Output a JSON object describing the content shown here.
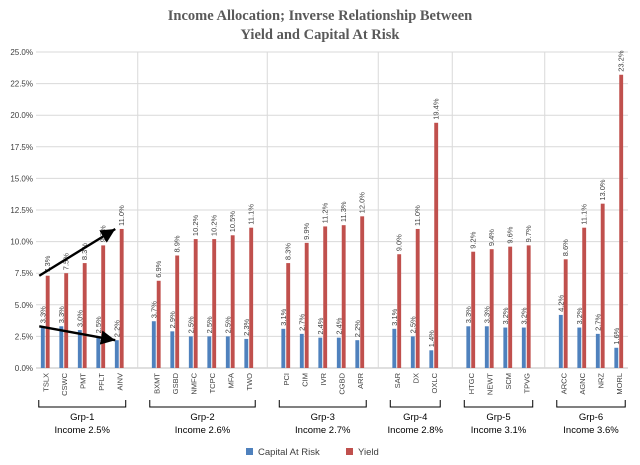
{
  "title_lines": [
    "Income Allocation; Inverse Relationship Between",
    "Yield and Capital At Risk"
  ],
  "colors": {
    "capital": "#4F81BD",
    "yield": "#C0504D",
    "grid": "#D9D9D9",
    "arrow": "#000000"
  },
  "chart_data": {
    "type": "bar",
    "title": "Income Allocation; Inverse Relationship Between Yield and Capital At Risk",
    "ylim": [
      0,
      25
    ],
    "yticks": [
      "0.0%",
      "2.5%",
      "5.0%",
      "7.5%",
      "10.0%",
      "12.5%",
      "15.0%",
      "17.5%",
      "20.0%",
      "22.5%",
      "25.0%"
    ],
    "grid": true,
    "legend_position": "bottom",
    "series": [
      {
        "name": "Capital At Risk",
        "color": "#4F81BD"
      },
      {
        "name": "Yield",
        "color": "#C0504D"
      }
    ],
    "groups": [
      {
        "name": "Grp-1",
        "income": "Income 2.5%",
        "items": [
          {
            "ticker": "TSLX",
            "capital": 3.3,
            "capital_label": "3.3%",
            "yield": 7.3,
            "yield_label": "7.3%"
          },
          {
            "ticker": "CSWC",
            "capital": 3.3,
            "capital_label": "3.3%",
            "yield": 7.5,
            "yield_label": "7.5%"
          },
          {
            "ticker": "PMT",
            "capital": 3.0,
            "capital_label": "3.0%",
            "yield": 8.3,
            "yield_label": "8.3%"
          },
          {
            "ticker": "PFLT",
            "capital": 2.5,
            "capital_label": "2.5%",
            "yield": 9.7,
            "yield_label": "9.7%"
          },
          {
            "ticker": "AINV",
            "capital": 2.2,
            "capital_label": "2.2%",
            "yield": 11.0,
            "yield_label": "11.0%"
          }
        ]
      },
      {
        "name": "Grp-2",
        "income": "Income 2.6%",
        "items": [
          {
            "ticker": "BXMT",
            "capital": 3.7,
            "capital_label": "3.7%",
            "yield": 6.9,
            "yield_label": "6.9%"
          },
          {
            "ticker": "GSBD",
            "capital": 2.9,
            "capital_label": "2.9%",
            "yield": 8.9,
            "yield_label": "8.9%"
          },
          {
            "ticker": "NMFC",
            "capital": 2.5,
            "capital_label": "2.5%",
            "yield": 10.2,
            "yield_label": "10.2%"
          },
          {
            "ticker": "TCPC",
            "capital": 2.5,
            "capital_label": "2.5%",
            "yield": 10.2,
            "yield_label": "10.2%"
          },
          {
            "ticker": "MFA",
            "capital": 2.5,
            "capital_label": "2.5%",
            "yield": 10.5,
            "yield_label": "10.5%"
          },
          {
            "ticker": "TWO",
            "capital": 2.3,
            "capital_label": "2.3%",
            "yield": 11.1,
            "yield_label": "11.1%"
          }
        ]
      },
      {
        "name": "Grp-3",
        "income": "Income 2.7%",
        "items": [
          {
            "ticker": "PCI",
            "capital": 3.1,
            "capital_label": "3.1%",
            "yield": 8.3,
            "yield_label": "8.3%"
          },
          {
            "ticker": "CIM",
            "capital": 2.7,
            "capital_label": "2.7%",
            "yield": 9.9,
            "yield_label": "9.9%"
          },
          {
            "ticker": "IVR",
            "capital": 2.4,
            "capital_label": "2.4%",
            "yield": 11.2,
            "yield_label": "11.2%"
          },
          {
            "ticker": "CGBD",
            "capital": 2.4,
            "capital_label": "2.4%",
            "yield": 11.3,
            "yield_label": "11.3%"
          },
          {
            "ticker": "ARR",
            "capital": 2.2,
            "capital_label": "2.2%",
            "yield": 12.0,
            "yield_label": "12.0%"
          }
        ]
      },
      {
        "name": "Grp-4",
        "income": "Income 2.8%",
        "items": [
          {
            "ticker": "SAR",
            "capital": 3.1,
            "capital_label": "3.1%",
            "yield": 9.0,
            "yield_label": "9.0%"
          },
          {
            "ticker": "DX",
            "capital": 2.5,
            "capital_label": "2.5%",
            "yield": 11.0,
            "yield_label": "11.0%"
          },
          {
            "ticker": "OXLC",
            "capital": 1.4,
            "capital_label": "1.4%",
            "yield": 19.4,
            "yield_label": "19.4%"
          }
        ]
      },
      {
        "name": "Grp-5",
        "income": "Income 3.1%",
        "items": [
          {
            "ticker": "HTGC",
            "capital": 3.3,
            "capital_label": "3.3%",
            "yield": 9.2,
            "yield_label": "9.2%"
          },
          {
            "ticker": "NEWT",
            "capital": 3.3,
            "capital_label": "3.3%",
            "yield": 9.4,
            "yield_label": "9.4%"
          },
          {
            "ticker": "SCM",
            "capital": 3.2,
            "capital_label": "3.2%",
            "yield": 9.6,
            "yield_label": "9.6%"
          },
          {
            "ticker": "TPVG",
            "capital": 3.2,
            "capital_label": "3.2%",
            "yield": 9.7,
            "yield_label": "9.7%"
          }
        ]
      },
      {
        "name": "Grp-6",
        "income": "Income 3.6%",
        "items": [
          {
            "ticker": "ARCC",
            "capital": 4.2,
            "capital_label": "4.2%",
            "yield": 8.6,
            "yield_label": "8.6%"
          },
          {
            "ticker": "AGNC",
            "capital": 3.2,
            "capital_label": "3.2%",
            "yield": 11.1,
            "yield_label": "11.1%"
          },
          {
            "ticker": "NRZ",
            "capital": 2.7,
            "capital_label": "2.7%",
            "yield": 13.0,
            "yield_label": "13.0%"
          },
          {
            "ticker": "MORL",
            "capital": 1.6,
            "capital_label": "1.6%",
            "yield": 23.2,
            "yield_label": "23.2%"
          }
        ]
      }
    ],
    "annotations": [
      {
        "type": "arrow",
        "from": {
          "ticker": "TSLX",
          "value": 3.3
        },
        "to": {
          "ticker": "AINV",
          "value": 2.2
        }
      },
      {
        "type": "arrow",
        "from": {
          "ticker": "TSLX",
          "value": 7.3
        },
        "to": {
          "ticker": "AINV",
          "value": 11.0
        }
      }
    ]
  }
}
